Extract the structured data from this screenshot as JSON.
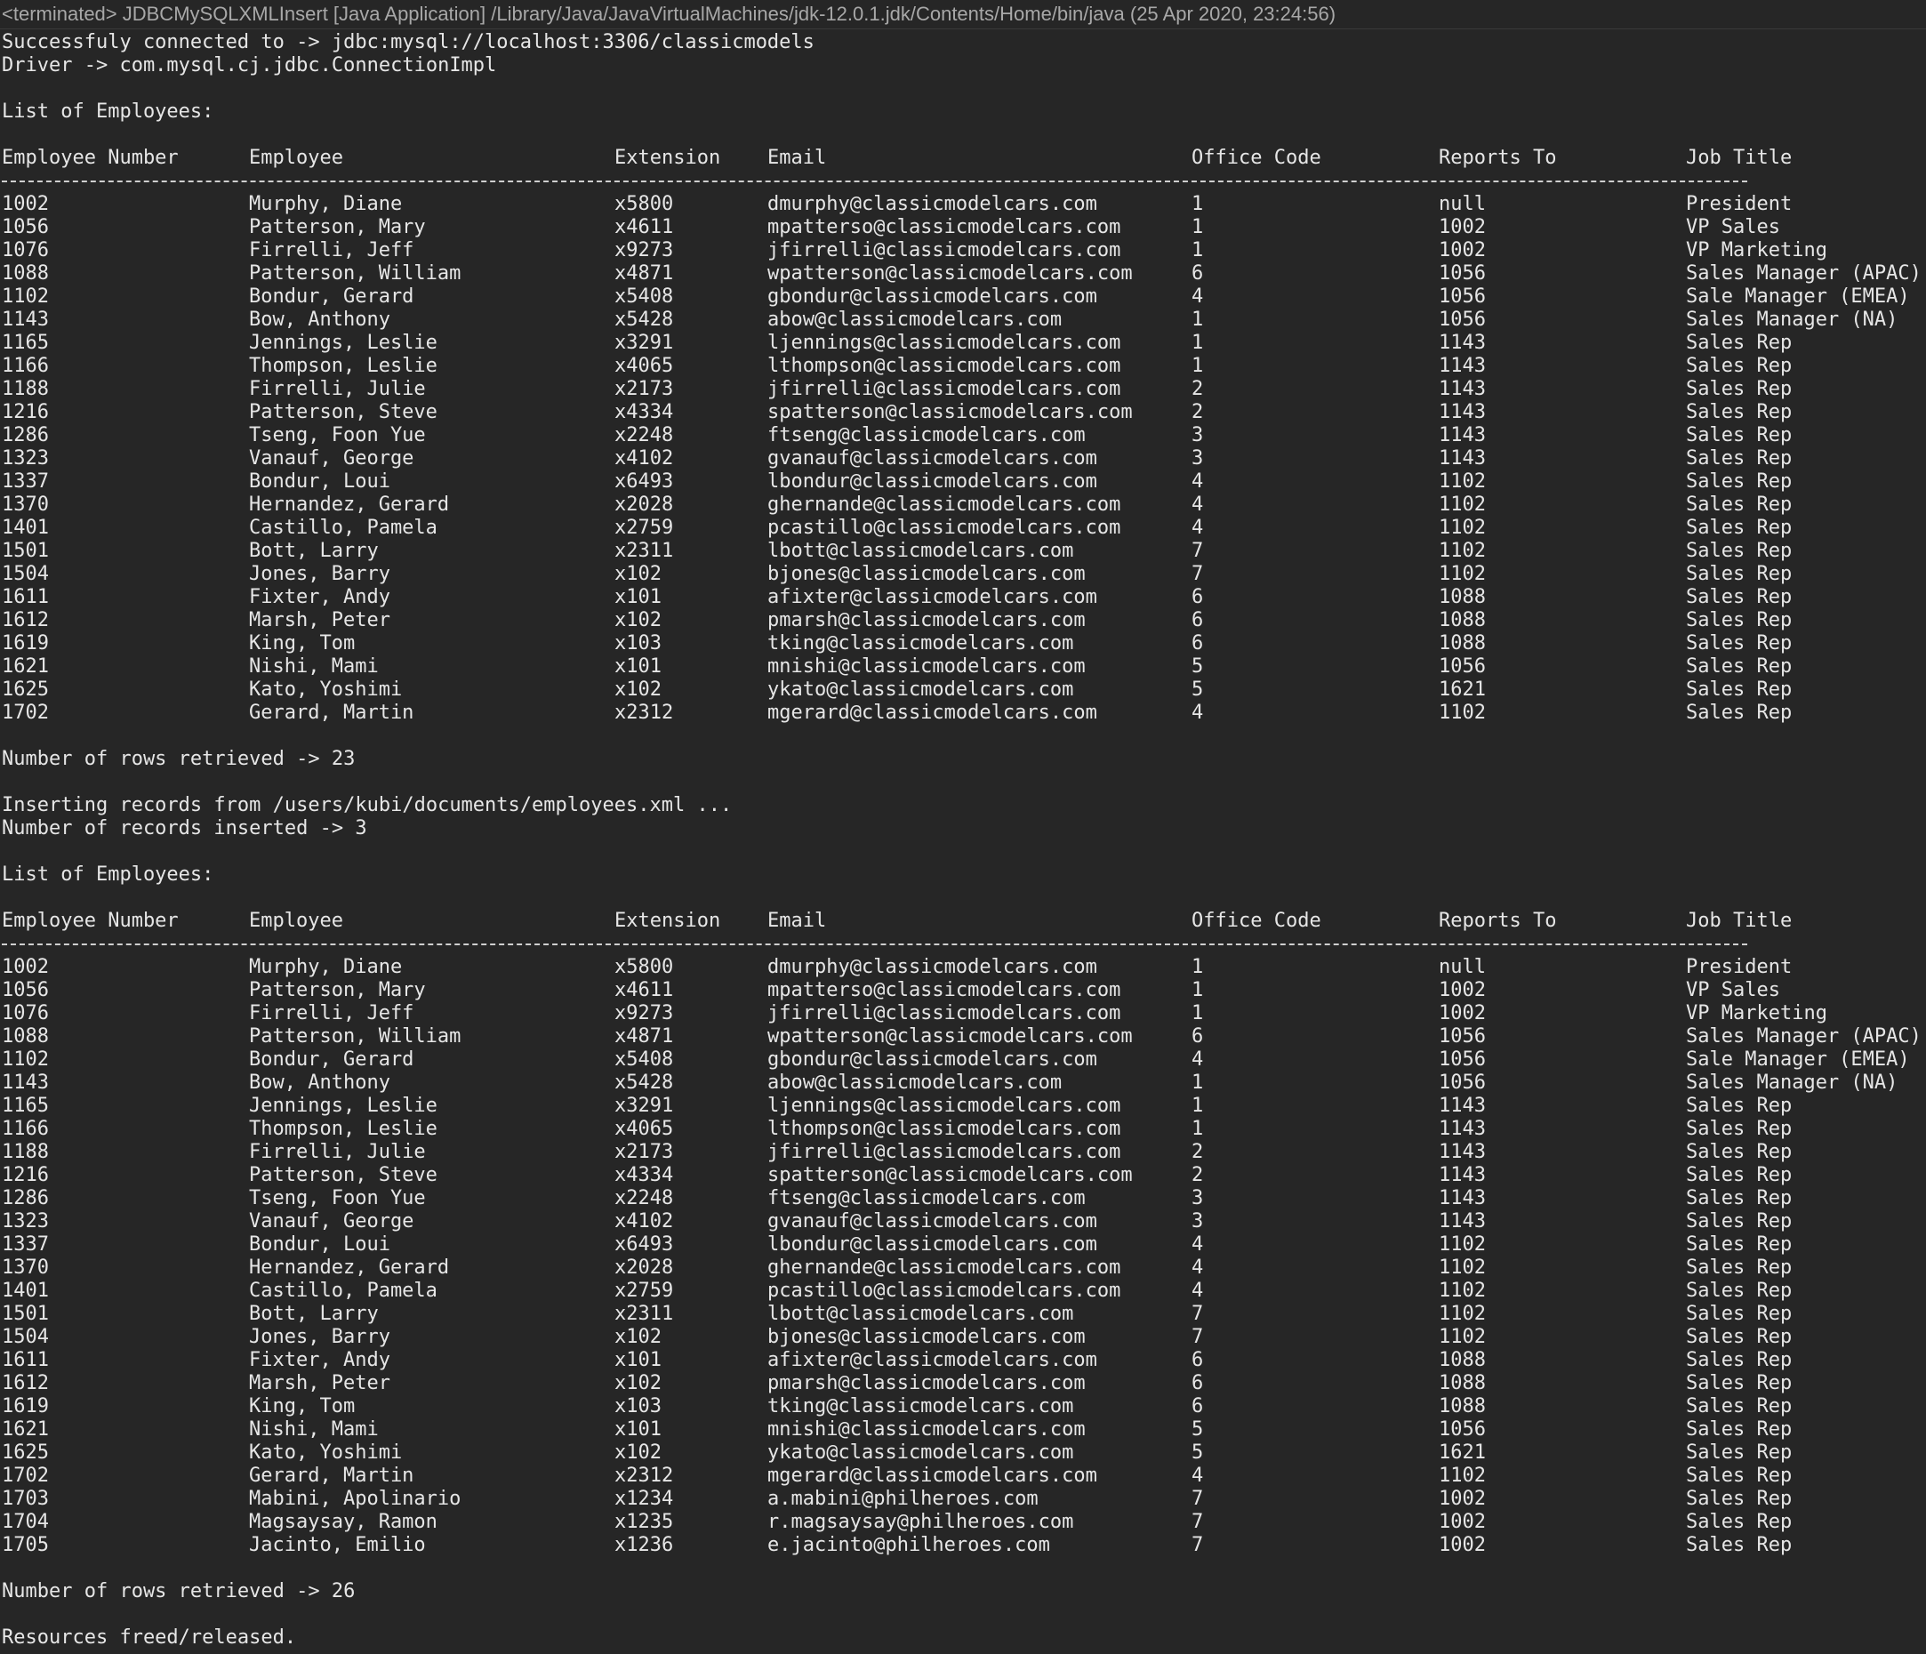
{
  "window": {
    "header": "<terminated> JDBCMySQLXMLInsert [Java Application] /Library/Java/JavaVirtualMachines/jdk-12.0.1.jdk/Contents/Home/bin/java (25 Apr 2020, 23:24:56)"
  },
  "console": {
    "connected": "Successfuly connected to -> jdbc:mysql://localhost:3306/classicmodels",
    "driver": "Driver -> com.mysql.cj.jdbc.ConnectionImpl",
    "list1_title": "List of Employees:",
    "list2_title": "List of Employees:",
    "rows_retrieved_1": "Number of rows retrieved -> 23",
    "inserting": "Inserting records from /users/kubi/documents/employees.xml ...",
    "inserted": "Number of records inserted -> 3",
    "rows_retrieved_2": "Number of rows retrieved -> 26",
    "freed": "Resources freed/released."
  },
  "table": {
    "columns": [
      "Employee Number",
      "Employee",
      "Extension",
      "Email",
      "Office Code",
      "Reports To",
      "Job Title"
    ]
  },
  "rows1": [
    [
      "1002",
      "Murphy, Diane",
      "x5800",
      "dmurphy@classicmodelcars.com",
      "1",
      "null",
      "President"
    ],
    [
      "1056",
      "Patterson, Mary",
      "x4611",
      "mpatterso@classicmodelcars.com",
      "1",
      "1002",
      "VP Sales"
    ],
    [
      "1076",
      "Firrelli, Jeff",
      "x9273",
      "jfirrelli@classicmodelcars.com",
      "1",
      "1002",
      "VP Marketing"
    ],
    [
      "1088",
      "Patterson, William",
      "x4871",
      "wpatterson@classicmodelcars.com",
      "6",
      "1056",
      "Sales Manager (APAC)"
    ],
    [
      "1102",
      "Bondur, Gerard",
      "x5408",
      "gbondur@classicmodelcars.com",
      "4",
      "1056",
      "Sale Manager (EMEA)"
    ],
    [
      "1143",
      "Bow, Anthony",
      "x5428",
      "abow@classicmodelcars.com",
      "1",
      "1056",
      "Sales Manager (NA)"
    ],
    [
      "1165",
      "Jennings, Leslie",
      "x3291",
      "ljennings@classicmodelcars.com",
      "1",
      "1143",
      "Sales Rep"
    ],
    [
      "1166",
      "Thompson, Leslie",
      "x4065",
      "lthompson@classicmodelcars.com",
      "1",
      "1143",
      "Sales Rep"
    ],
    [
      "1188",
      "Firrelli, Julie",
      "x2173",
      "jfirrelli@classicmodelcars.com",
      "2",
      "1143",
      "Sales Rep"
    ],
    [
      "1216",
      "Patterson, Steve",
      "x4334",
      "spatterson@classicmodelcars.com",
      "2",
      "1143",
      "Sales Rep"
    ],
    [
      "1286",
      "Tseng, Foon Yue",
      "x2248",
      "ftseng@classicmodelcars.com",
      "3",
      "1143",
      "Sales Rep"
    ],
    [
      "1323",
      "Vanauf, George",
      "x4102",
      "gvanauf@classicmodelcars.com",
      "3",
      "1143",
      "Sales Rep"
    ],
    [
      "1337",
      "Bondur, Loui",
      "x6493",
      "lbondur@classicmodelcars.com",
      "4",
      "1102",
      "Sales Rep"
    ],
    [
      "1370",
      "Hernandez, Gerard",
      "x2028",
      "ghernande@classicmodelcars.com",
      "4",
      "1102",
      "Sales Rep"
    ],
    [
      "1401",
      "Castillo, Pamela",
      "x2759",
      "pcastillo@classicmodelcars.com",
      "4",
      "1102",
      "Sales Rep"
    ],
    [
      "1501",
      "Bott, Larry",
      "x2311",
      "lbott@classicmodelcars.com",
      "7",
      "1102",
      "Sales Rep"
    ],
    [
      "1504",
      "Jones, Barry",
      "x102",
      "bjones@classicmodelcars.com",
      "7",
      "1102",
      "Sales Rep"
    ],
    [
      "1611",
      "Fixter, Andy",
      "x101",
      "afixter@classicmodelcars.com",
      "6",
      "1088",
      "Sales Rep"
    ],
    [
      "1612",
      "Marsh, Peter",
      "x102",
      "pmarsh@classicmodelcars.com",
      "6",
      "1088",
      "Sales Rep"
    ],
    [
      "1619",
      "King, Tom",
      "x103",
      "tking@classicmodelcars.com",
      "6",
      "1088",
      "Sales Rep"
    ],
    [
      "1621",
      "Nishi, Mami",
      "x101",
      "mnishi@classicmodelcars.com",
      "5",
      "1056",
      "Sales Rep"
    ],
    [
      "1625",
      "Kato, Yoshimi",
      "x102",
      "ykato@classicmodelcars.com",
      "5",
      "1621",
      "Sales Rep"
    ],
    [
      "1702",
      "Gerard, Martin",
      "x2312",
      "mgerard@classicmodelcars.com",
      "4",
      "1102",
      "Sales Rep"
    ]
  ],
  "rows2": [
    [
      "1002",
      "Murphy, Diane",
      "x5800",
      "dmurphy@classicmodelcars.com",
      "1",
      "null",
      "President"
    ],
    [
      "1056",
      "Patterson, Mary",
      "x4611",
      "mpatterso@classicmodelcars.com",
      "1",
      "1002",
      "VP Sales"
    ],
    [
      "1076",
      "Firrelli, Jeff",
      "x9273",
      "jfirrelli@classicmodelcars.com",
      "1",
      "1002",
      "VP Marketing"
    ],
    [
      "1088",
      "Patterson, William",
      "x4871",
      "wpatterson@classicmodelcars.com",
      "6",
      "1056",
      "Sales Manager (APAC)"
    ],
    [
      "1102",
      "Bondur, Gerard",
      "x5408",
      "gbondur@classicmodelcars.com",
      "4",
      "1056",
      "Sale Manager (EMEA)"
    ],
    [
      "1143",
      "Bow, Anthony",
      "x5428",
      "abow@classicmodelcars.com",
      "1",
      "1056",
      "Sales Manager (NA)"
    ],
    [
      "1165",
      "Jennings, Leslie",
      "x3291",
      "ljennings@classicmodelcars.com",
      "1",
      "1143",
      "Sales Rep"
    ],
    [
      "1166",
      "Thompson, Leslie",
      "x4065",
      "lthompson@classicmodelcars.com",
      "1",
      "1143",
      "Sales Rep"
    ],
    [
      "1188",
      "Firrelli, Julie",
      "x2173",
      "jfirrelli@classicmodelcars.com",
      "2",
      "1143",
      "Sales Rep"
    ],
    [
      "1216",
      "Patterson, Steve",
      "x4334",
      "spatterson@classicmodelcars.com",
      "2",
      "1143",
      "Sales Rep"
    ],
    [
      "1286",
      "Tseng, Foon Yue",
      "x2248",
      "ftseng@classicmodelcars.com",
      "3",
      "1143",
      "Sales Rep"
    ],
    [
      "1323",
      "Vanauf, George",
      "x4102",
      "gvanauf@classicmodelcars.com",
      "3",
      "1143",
      "Sales Rep"
    ],
    [
      "1337",
      "Bondur, Loui",
      "x6493",
      "lbondur@classicmodelcars.com",
      "4",
      "1102",
      "Sales Rep"
    ],
    [
      "1370",
      "Hernandez, Gerard",
      "x2028",
      "ghernande@classicmodelcars.com",
      "4",
      "1102",
      "Sales Rep"
    ],
    [
      "1401",
      "Castillo, Pamela",
      "x2759",
      "pcastillo@classicmodelcars.com",
      "4",
      "1102",
      "Sales Rep"
    ],
    [
      "1501",
      "Bott, Larry",
      "x2311",
      "lbott@classicmodelcars.com",
      "7",
      "1102",
      "Sales Rep"
    ],
    [
      "1504",
      "Jones, Barry",
      "x102",
      "bjones@classicmodelcars.com",
      "7",
      "1102",
      "Sales Rep"
    ],
    [
      "1611",
      "Fixter, Andy",
      "x101",
      "afixter@classicmodelcars.com",
      "6",
      "1088",
      "Sales Rep"
    ],
    [
      "1612",
      "Marsh, Peter",
      "x102",
      "pmarsh@classicmodelcars.com",
      "6",
      "1088",
      "Sales Rep"
    ],
    [
      "1619",
      "King, Tom",
      "x103",
      "tking@classicmodelcars.com",
      "6",
      "1088",
      "Sales Rep"
    ],
    [
      "1621",
      "Nishi, Mami",
      "x101",
      "mnishi@classicmodelcars.com",
      "5",
      "1056",
      "Sales Rep"
    ],
    [
      "1625",
      "Kato, Yoshimi",
      "x102",
      "ykato@classicmodelcars.com",
      "5",
      "1621",
      "Sales Rep"
    ],
    [
      "1702",
      "Gerard, Martin",
      "x2312",
      "mgerard@classicmodelcars.com",
      "4",
      "1102",
      "Sales Rep"
    ],
    [
      "1703",
      "Mabini, Apolinario",
      "x1234",
      "a.mabini@philheroes.com",
      "7",
      "1002",
      "Sales Rep"
    ],
    [
      "1704",
      "Magsaysay, Ramon",
      "x1235",
      "r.magsaysay@philheroes.com",
      "7",
      "1002",
      "Sales Rep"
    ],
    [
      "1705",
      "Jacinto, Emilio",
      "x1236",
      "e.jacinto@philheroes.com",
      "7",
      "1002",
      "Sales Rep"
    ]
  ]
}
